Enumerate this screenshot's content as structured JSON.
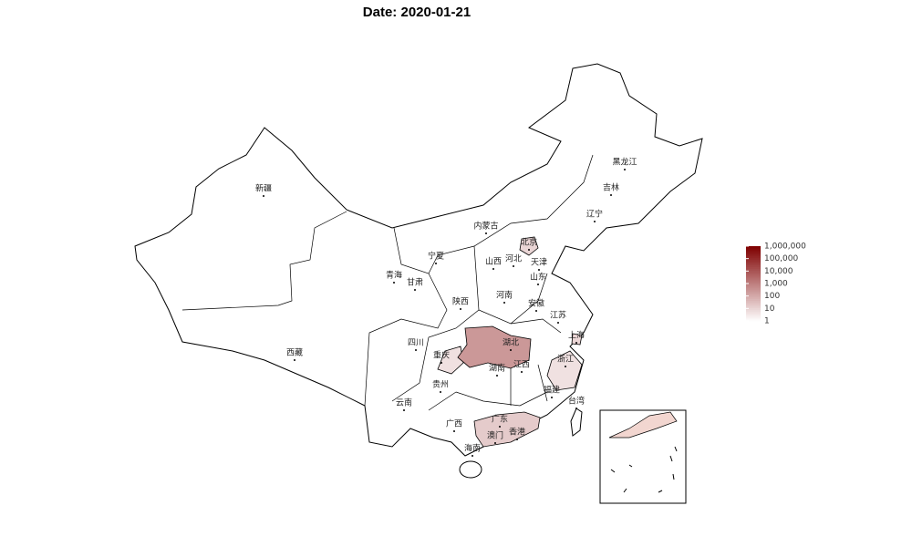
{
  "map_data": {
    "title": "Date: 2020-01-21",
    "provinces": [
      {
        "name": "新疆"
      },
      {
        "name": "西藏"
      },
      {
        "name": "青海"
      },
      {
        "name": "甘肃"
      },
      {
        "name": "宁夏"
      },
      {
        "name": "内蒙古"
      },
      {
        "name": "陕西"
      },
      {
        "name": "山西"
      },
      {
        "name": "河北"
      },
      {
        "name": "北京",
        "value": 10
      },
      {
        "name": "天津"
      },
      {
        "name": "黑龙江"
      },
      {
        "name": "吉林"
      },
      {
        "name": "辽宁"
      },
      {
        "name": "山东"
      },
      {
        "name": "河南"
      },
      {
        "name": "四川"
      },
      {
        "name": "重庆",
        "value": 5
      },
      {
        "name": "湖北",
        "value": 270
      },
      {
        "name": "湖南"
      },
      {
        "name": "安徽"
      },
      {
        "name": "江苏"
      },
      {
        "name": "上海",
        "value": 9
      },
      {
        "name": "浙江",
        "value": 5
      },
      {
        "name": "江西"
      },
      {
        "name": "福建"
      },
      {
        "name": "台湾"
      },
      {
        "name": "贵州"
      },
      {
        "name": "云南"
      },
      {
        "name": "广西"
      },
      {
        "name": "广东",
        "value": 17
      },
      {
        "name": "香港"
      },
      {
        "name": "澳门"
      },
      {
        "name": "海南"
      }
    ],
    "legend": {
      "range": [
        1,
        1000000
      ],
      "low_color": "#ffffff",
      "high_color": "#7f0000",
      "log_scale": true,
      "ticks": [
        1,
        10,
        100,
        {
          "value": 1000,
          "label": "1,000"
        },
        {
          "value": 10000,
          "label": "10,000"
        },
        {
          "value": 100000,
          "label": "100,000"
        },
        {
          "value": 1000000,
          "label": "1,000,000"
        }
      ]
    }
  }
}
